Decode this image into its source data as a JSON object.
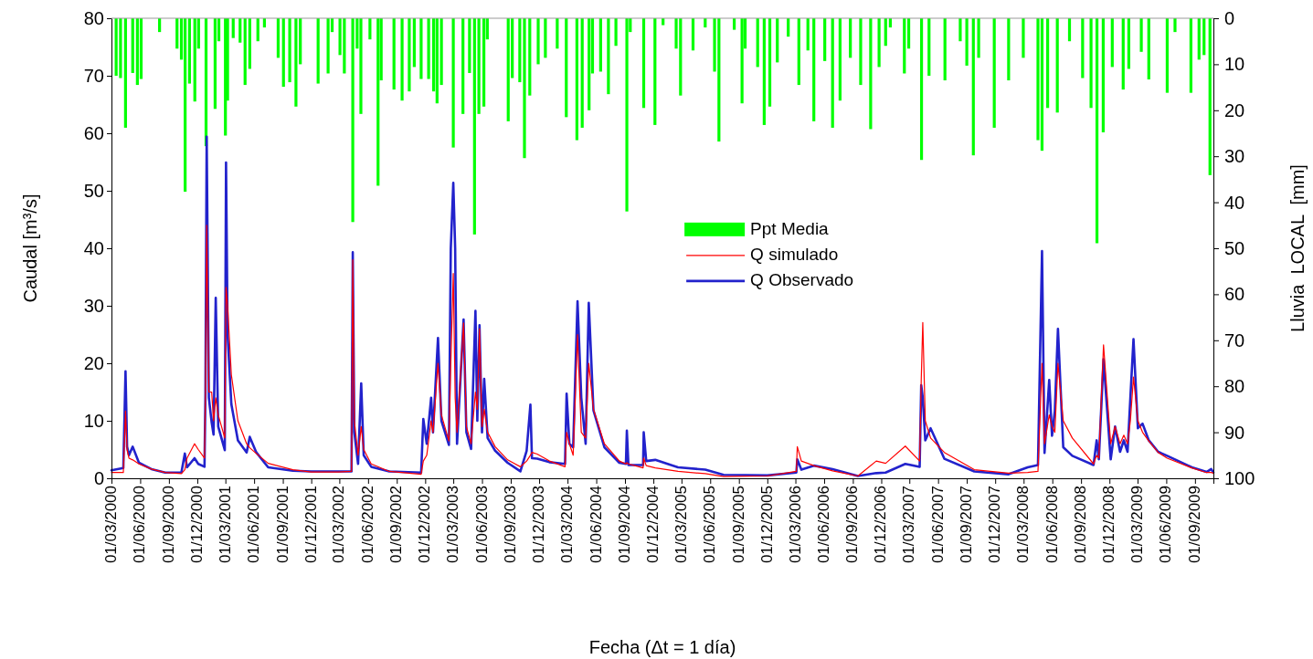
{
  "chart_data": {
    "type": "line",
    "xlabel": "Fecha (Δt = 1 día)",
    "ylabel": "Caudal [m³/s]",
    "y2label": "Lluvia  LOCAL  [mm]",
    "xlim": [
      "2000-03-01",
      "2009-10-30"
    ],
    "ylim": [
      0,
      80
    ],
    "yticks": [
      0,
      10,
      20,
      30,
      40,
      50,
      60,
      70,
      80
    ],
    "y2lim": [
      100,
      0
    ],
    "y2ticks": [
      0,
      10,
      20,
      30,
      40,
      50,
      60,
      70,
      80,
      90,
      100
    ],
    "xticks": [
      {
        "value": "2000-03-01",
        "label": "01/03/2000"
      },
      {
        "value": "2000-06-01",
        "label": "01/06/2000"
      },
      {
        "value": "2000-09-01",
        "label": "01/09/2000"
      },
      {
        "value": "2000-12-01",
        "label": "01/12/2000"
      },
      {
        "value": "2001-03-01",
        "label": "01/03/2001"
      },
      {
        "value": "2001-06-01",
        "label": "01/06/2001"
      },
      {
        "value": "2001-09-01",
        "label": "01/09/2001"
      },
      {
        "value": "2001-12-01",
        "label": "01/12/2001"
      },
      {
        "value": "2002-03-01",
        "label": "01/03/2002"
      },
      {
        "value": "2002-06-01",
        "label": "01/06/2002"
      },
      {
        "value": "2002-09-01",
        "label": "01/09/2002"
      },
      {
        "value": "2002-12-01",
        "label": "01/12/2002"
      },
      {
        "value": "2003-03-01",
        "label": "01/03/2003"
      },
      {
        "value": "2003-06-01",
        "label": "01/06/2003"
      },
      {
        "value": "2003-09-01",
        "label": "01/09/2003"
      },
      {
        "value": "2003-12-01",
        "label": "01/12/2003"
      },
      {
        "value": "2004-03-01",
        "label": "01/03/2004"
      },
      {
        "value": "2004-06-01",
        "label": "01/06/2004"
      },
      {
        "value": "2004-09-01",
        "label": "01/09/2004"
      },
      {
        "value": "2004-12-01",
        "label": "01/12/2004"
      },
      {
        "value": "2005-03-01",
        "label": "01/03/2005"
      },
      {
        "value": "2005-06-01",
        "label": "01/06/2005"
      },
      {
        "value": "2005-09-01",
        "label": "01/09/2005"
      },
      {
        "value": "2005-12-01",
        "label": "01/12/2005"
      },
      {
        "value": "2006-03-01",
        "label": "01/03/2006"
      },
      {
        "value": "2006-06-01",
        "label": "01/06/2006"
      },
      {
        "value": "2006-09-01",
        "label": "01/09/2006"
      },
      {
        "value": "2006-12-01",
        "label": "01/12/2006"
      },
      {
        "value": "2007-03-01",
        "label": "01/03/2007"
      },
      {
        "value": "2007-06-01",
        "label": "01/06/2007"
      },
      {
        "value": "2007-09-01",
        "label": "01/09/2007"
      },
      {
        "value": "2007-12-01",
        "label": "01/12/2007"
      },
      {
        "value": "2008-03-01",
        "label": "01/03/2008"
      },
      {
        "value": "2008-06-01",
        "label": "01/06/2008"
      },
      {
        "value": "2008-09-01",
        "label": "01/09/2008"
      },
      {
        "value": "2008-12-01",
        "label": "01/12/2008"
      },
      {
        "value": "2009-03-01",
        "label": "01/03/2009"
      },
      {
        "value": "2009-06-01",
        "label": "01/06/2009"
      },
      {
        "value": "2009-09-01",
        "label": "01/09/2009"
      }
    ],
    "legend": "center",
    "x": [
      "2000-03-01",
      "2000-04-08",
      "2000-04-15",
      "2000-04-20",
      "2000-04-26",
      "2000-05-08",
      "2000-05-28",
      "2000-07-07",
      "2000-08-20",
      "2000-10-11",
      "2000-10-22",
      "2000-10-29",
      "2000-11-22",
      "2000-12-04",
      "2000-12-24",
      "2000-12-27",
      "2000-12-31",
      "2001-01-07",
      "2001-01-16",
      "2001-01-22",
      "2001-01-29",
      "2001-02-06",
      "2001-02-27",
      "2001-03-03",
      "2001-03-08",
      "2001-03-20",
      "2001-04-10",
      "2001-05-08",
      "2001-05-18",
      "2001-06-08",
      "2001-07-16",
      "2001-10-03",
      "2001-12-01",
      "2002-02-26",
      "2002-04-09",
      "2002-04-13",
      "2002-04-18",
      "2002-04-30",
      "2002-05-10",
      "2002-05-18",
      "2002-06-11",
      "2002-08-08",
      "2002-11-18",
      "2002-11-25",
      "2002-12-06",
      "2002-12-20",
      "2002-12-26",
      "2003-01-11",
      "2003-01-22",
      "2003-02-15",
      "2003-02-21",
      "2003-03-01",
      "2003-03-07",
      "2003-03-13",
      "2003-04-03",
      "2003-04-12",
      "2003-04-27",
      "2003-05-11",
      "2003-05-17",
      "2003-05-24",
      "2003-06-01",
      "2003-06-08",
      "2003-06-19",
      "2003-07-13",
      "2003-08-22",
      "2003-10-02",
      "2003-10-22",
      "2003-11-03",
      "2003-11-08",
      "2003-11-25",
      "2004-01-03",
      "2004-02-22",
      "2004-02-27",
      "2004-03-07",
      "2004-03-19",
      "2004-04-02",
      "2004-04-14",
      "2004-04-28",
      "2004-05-08",
      "2004-05-23",
      "2004-06-27",
      "2004-08-14",
      "2004-09-04",
      "2004-09-07",
      "2004-09-12",
      "2004-10-29",
      "2004-10-31",
      "2004-11-08",
      "2004-12-07",
      "2005-02-18",
      "2005-05-16",
      "2005-07-14",
      "2005-12-01",
      "2006-03-04",
      "2006-03-07",
      "2006-03-20",
      "2006-04-29",
      "2006-06-28",
      "2006-09-17",
      "2006-11-15",
      "2006-12-15",
      "2007-02-16",
      "2007-04-03",
      "2007-04-08",
      "2007-04-13",
      "2007-04-21",
      "2007-05-08",
      "2007-06-21",
      "2007-09-25",
      "2008-01-13",
      "2008-03-14",
      "2008-04-16",
      "2008-04-29",
      "2008-05-07",
      "2008-05-22",
      "2008-05-31",
      "2008-06-09",
      "2008-06-19",
      "2008-07-06",
      "2008-08-04",
      "2008-10-11",
      "2008-10-21",
      "2008-10-28",
      "2008-11-12",
      "2008-12-05",
      "2008-12-19",
      "2009-01-04",
      "2009-01-16",
      "2009-01-28",
      "2009-02-06",
      "2009-02-16",
      "2009-03-02",
      "2009-03-17",
      "2009-04-06",
      "2009-05-06",
      "2009-06-04",
      "2009-08-22",
      "2009-10-08",
      "2009-10-23",
      "2009-10-30"
    ],
    "series": [
      {
        "name": "Ppt Media",
        "type": "bar",
        "axis": "y2",
        "color": "#00ff00",
        "x": [
          "2000-03-16",
          "2000-03-30",
          "2000-04-15",
          "2000-05-08",
          "2000-05-23",
          "2000-06-04",
          "2000-08-02",
          "2000-09-27",
          "2000-10-11",
          "2000-10-23",
          "2000-11-06",
          "2000-11-23",
          "2000-12-05",
          "2000-12-29",
          "2001-01-27",
          "2001-02-08",
          "2001-03-01",
          "2001-03-08",
          "2001-03-26",
          "2001-04-17",
          "2001-05-03",
          "2001-05-18",
          "2001-06-13",
          "2001-07-04",
          "2001-08-17",
          "2001-09-03",
          "2001-09-23",
          "2001-10-13",
          "2001-10-27",
          "2001-12-23",
          "2002-01-24",
          "2002-02-06",
          "2002-03-03",
          "2002-03-17",
          "2002-04-13",
          "2002-04-27",
          "2002-05-09",
          "2002-06-07",
          "2002-07-03",
          "2002-07-13",
          "2002-08-23",
          "2002-09-18",
          "2002-10-11",
          "2002-10-27",
          "2002-11-18",
          "2002-12-12",
          "2002-12-28",
          "2003-01-08",
          "2003-01-22",
          "2003-03-01",
          "2003-04-01",
          "2003-04-22",
          "2003-05-08",
          "2003-05-22",
          "2003-06-07",
          "2003-06-18",
          "2003-08-24",
          "2003-09-06",
          "2003-09-30",
          "2003-10-15",
          "2003-11-01",
          "2003-11-28",
          "2003-12-21",
          "2004-01-28",
          "2004-02-26",
          "2004-03-31",
          "2004-04-17",
          "2004-05-09",
          "2004-05-20",
          "2004-06-15",
          "2004-07-10",
          "2004-08-03",
          "2004-09-07",
          "2004-09-18",
          "2004-10-31",
          "2004-12-06",
          "2005-01-01",
          "2005-02-12",
          "2005-02-26",
          "2005-04-07",
          "2005-05-16",
          "2005-06-15",
          "2005-06-29",
          "2005-08-17",
          "2005-09-11",
          "2005-09-21",
          "2005-10-31",
          "2005-11-21",
          "2005-12-09",
          "2006-01-02",
          "2006-02-06",
          "2006-03-12",
          "2006-04-10",
          "2006-04-29",
          "2006-06-03",
          "2006-06-28",
          "2006-07-22",
          "2006-08-24",
          "2006-09-26",
          "2006-10-28",
          "2006-11-24",
          "2006-12-15",
          "2006-12-30",
          "2007-02-13",
          "2007-02-27",
          "2007-04-09",
          "2007-05-03",
          "2007-06-23",
          "2007-08-11",
          "2007-09-01",
          "2007-09-22",
          "2007-10-09",
          "2007-11-28",
          "2008-01-13",
          "2008-02-29",
          "2008-04-16",
          "2008-04-29",
          "2008-05-17",
          "2008-06-17",
          "2008-07-26",
          "2008-09-06",
          "2008-10-03",
          "2008-10-22",
          "2008-11-11",
          "2008-12-10",
          "2009-01-14",
          "2009-02-01",
          "2009-03-13",
          "2009-04-06",
          "2009-06-04",
          "2009-06-29",
          "2009-08-19",
          "2009-09-14",
          "2009-09-30",
          "2009-10-19"
        ],
        "values": [
          12.5,
          13,
          23.8,
          11.9,
          14.5,
          13.2,
          3,
          6.6,
          9,
          37.7,
          14.2,
          18.1,
          6.6,
          27.8,
          19.7,
          5,
          25.5,
          17.9,
          4.3,
          5.3,
          14.5,
          11,
          5,
          2,
          8.6,
          14.9,
          13.9,
          19.2,
          10,
          14.2,
          12,
          3,
          8,
          12,
          44.3,
          6.6,
          20.8,
          4.6,
          36.4,
          13.5,
          15.5,
          17.9,
          15.9,
          10.6,
          13.2,
          13.2,
          15.9,
          18.5,
          14.5,
          28.1,
          20.8,
          11.9,
          47,
          20.8,
          19.2,
          4.6,
          22.4,
          13,
          13.9,
          30.4,
          16.8,
          10,
          8.6,
          6.6,
          21.5,
          26.5,
          23.8,
          20,
          12,
          11.6,
          16.5,
          6,
          42,
          3,
          19.5,
          23.2,
          1.5,
          6.6,
          16.8,
          7,
          2,
          11.6,
          26.8,
          2.5,
          18.5,
          6.6,
          10.6,
          23.2,
          19.2,
          9.6,
          4,
          14.5,
          7,
          22.4,
          9.3,
          23.8,
          17.9,
          8.6,
          14.5,
          24.1,
          10.6,
          6,
          2,
          12,
          6.6,
          30.8,
          12.5,
          13.5,
          5,
          10.3,
          29.8,
          8.6,
          23.8,
          13.5,
          8.6,
          26.5,
          28.8,
          19.5,
          20.5,
          5,
          13,
          19.5,
          48.9,
          24.8,
          10.6,
          15.5,
          11,
          7.3,
          13.3,
          16.2,
          3,
          16.2,
          9,
          8,
          34.1
        ]
      },
      {
        "name": "Q simulado",
        "color": "#ff0000",
        "values": [
          1.0,
          1.0,
          11.7,
          5.0,
          3.5,
          3.2,
          2.5,
          1.6,
          1.0,
          0.8,
          1.5,
          3.5,
          6.0,
          5.0,
          3.5,
          14.5,
          44,
          15,
          15,
          10,
          14,
          11,
          7,
          33.2,
          30,
          18,
          10,
          6,
          5.3,
          4.3,
          2.6,
          1.5,
          1.1,
          1.1,
          1.2,
          38,
          10,
          4,
          9,
          5,
          2.5,
          1.2,
          0.7,
          3,
          4,
          10,
          8,
          20,
          11,
          6.5,
          20,
          35.6,
          14,
          8,
          27,
          9,
          6,
          15,
          12,
          26,
          9,
          12,
          8,
          5.5,
          3.2,
          2.0,
          3.0,
          4.0,
          4.5,
          4.2,
          3.0,
          2.0,
          8,
          6,
          4,
          25,
          8,
          7,
          20,
          12,
          6,
          3.0,
          2.5,
          2.7,
          2.5,
          1.8,
          3.5,
          2.2,
          1.8,
          1.2,
          0.8,
          0.3,
          0.4,
          1.2,
          5.5,
          3,
          2.2,
          1.3,
          0.4,
          3.0,
          2.6,
          5.6,
          3.0,
          17,
          27.1,
          10,
          7,
          4.5,
          1.5,
          0.9,
          1.0,
          1.2,
          20,
          6,
          11,
          9,
          8,
          20,
          10,
          7,
          2.5,
          4,
          3.5,
          23.2,
          6,
          9,
          6,
          7.5,
          6,
          10,
          17.6,
          10,
          8,
          6.5,
          4.5,
          3.5,
          1.8,
          1.0,
          1.0,
          0.9
        ]
      },
      {
        "name": "Q Observado",
        "color": "#2222cc",
        "values": [
          1.4,
          1.8,
          18.6,
          5.5,
          4.0,
          5.5,
          2.7,
          1.6,
          1.0,
          1.0,
          4.3,
          1.9,
          3.5,
          2.5,
          2.0,
          14.7,
          59.4,
          14,
          9.7,
          7.6,
          31.4,
          9.0,
          4.9,
          54.9,
          25,
          12.9,
          6.6,
          4.5,
          7.2,
          4.5,
          1.9,
          1.3,
          1.2,
          1.2,
          1.2,
          39.3,
          8,
          2.5,
          16.5,
          4,
          2.0,
          1.2,
          1.0,
          10.3,
          6,
          14,
          8,
          24.4,
          10,
          5.8,
          40,
          51.4,
          40,
          6.0,
          27.6,
          8,
          5.1,
          29.1,
          10,
          26.6,
          8,
          17.3,
          7,
          4.8,
          2.7,
          1.2,
          4.8,
          12.8,
          3.5,
          3.4,
          2.8,
          2.5,
          14.7,
          6,
          5.4,
          30.8,
          14,
          6,
          30.5,
          11.8,
          5.4,
          2.7,
          2.5,
          8.3,
          2.3,
          2.3,
          8.0,
          3.0,
          3.2,
          1.9,
          1.5,
          0.6,
          0.5,
          1.0,
          3.3,
          1.5,
          2.2,
          1.6,
          0.4,
          0.9,
          1.0,
          2.5,
          2.0,
          16.2,
          14,
          6.6,
          8.7,
          3.4,
          1.2,
          0.7,
          1.9,
          2.3,
          39.5,
          4.4,
          17.1,
          7.4,
          11.7,
          26.0,
          5.4,
          3.9,
          2.3,
          6.6,
          3.3,
          20.7,
          3.3,
          9.0,
          4.6,
          6.6,
          4.6,
          14,
          24.2,
          8.7,
          9.5,
          6.6,
          4.6,
          3.9,
          1.9,
          1.1,
          1.6,
          1.0
        ]
      }
    ]
  }
}
